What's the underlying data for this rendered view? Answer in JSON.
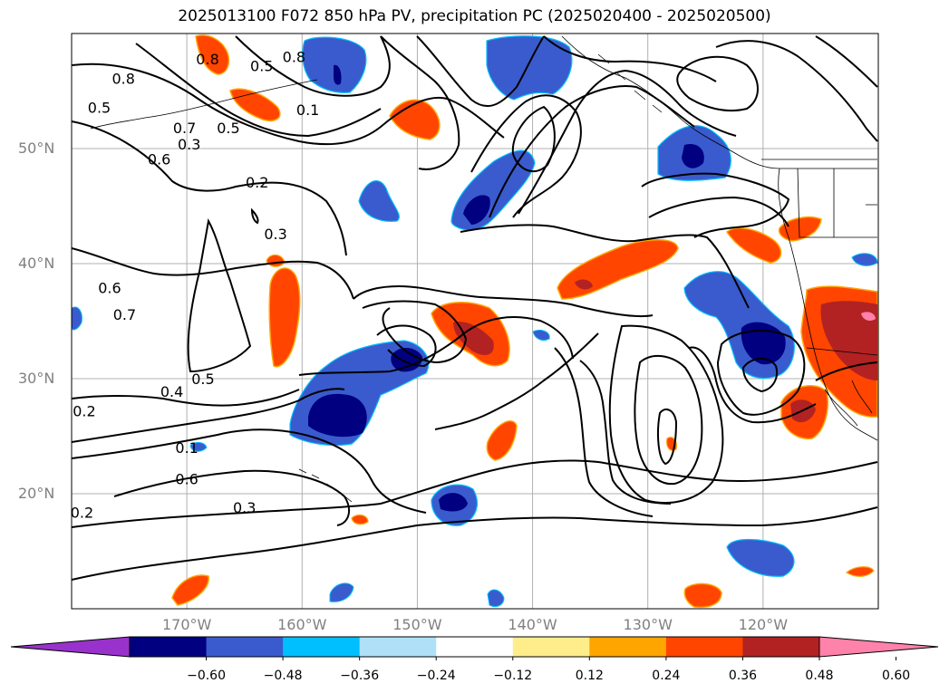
{
  "title": "2025013100 F072 850 hPa PV, precipitation PC (2025020400 - 2025020500)",
  "map": {
    "lon_min": -180,
    "lon_max": -110,
    "lat_min": 10,
    "lat_max": 60,
    "lat_ticks": [
      {
        "value": 20,
        "label": "20°N"
      },
      {
        "value": 30,
        "label": "30°N"
      },
      {
        "value": 40,
        "label": "40°N"
      },
      {
        "value": 50,
        "label": "50°N"
      }
    ],
    "lon_ticks": [
      {
        "value": -170,
        "label": "170°W"
      },
      {
        "value": -160,
        "label": "160°W"
      },
      {
        "value": -150,
        "label": "150°W"
      },
      {
        "value": -140,
        "label": "140°W"
      },
      {
        "value": -130,
        "label": "130°W"
      },
      {
        "value": -120,
        "label": "120°W"
      }
    ],
    "grid": true
  },
  "pv_contour_labels": [
    {
      "text": "0.8",
      "lon": -175.5,
      "lat": 56.1
    },
    {
      "text": "0.5",
      "lon": -177.6,
      "lat": 53.6
    },
    {
      "text": "0.7",
      "lon": -170.2,
      "lat": 51.8
    },
    {
      "text": "0.5",
      "lon": -166.4,
      "lat": 51.8
    },
    {
      "text": "0.6",
      "lon": -172.4,
      "lat": 49.1
    },
    {
      "text": "0.3",
      "lon": -169.8,
      "lat": 50.4
    },
    {
      "text": "0.8",
      "lon": -168.2,
      "lat": 57.8
    },
    {
      "text": "0.5",
      "lon": -163.5,
      "lat": 57.2
    },
    {
      "text": "0.8",
      "lon": -160.7,
      "lat": 58.0
    },
    {
      "text": "0.1",
      "lon": -159.5,
      "lat": 53.4
    },
    {
      "text": "0.2",
      "lon": -163.9,
      "lat": 47.1
    },
    {
      "text": "0.3",
      "lon": -162.3,
      "lat": 42.6
    },
    {
      "text": "0.6",
      "lon": -176.7,
      "lat": 37.9
    },
    {
      "text": "0.7",
      "lon": -175.4,
      "lat": 35.6
    },
    {
      "text": "0.4",
      "lon": -171.3,
      "lat": 28.9
    },
    {
      "text": "0.5",
      "lon": -168.6,
      "lat": 30.0
    },
    {
      "text": "0.1",
      "lon": -170.0,
      "lat": 24.0
    },
    {
      "text": "0.6",
      "lon": -170.0,
      "lat": 21.3
    },
    {
      "text": "0.2",
      "lon": -178.9,
      "lat": 27.2
    },
    {
      "text": "0.2",
      "lon": -179.1,
      "lat": 18.4
    },
    {
      "text": "0.3",
      "lon": -165.0,
      "lat": 18.8
    }
  ],
  "precip_colors": {
    "n060": "#000080",
    "n048": "#3a5bcd",
    "n036": "#00bfff",
    "n024": "#b0e0f8",
    "p024": "#ffa500",
    "p036": "#ff4500",
    "p048": "#b22222",
    "p060": "#ff82ab",
    "p012": "#ffec8b"
  },
  "colorbar": {
    "colors": [
      "#9932cc",
      "#000080",
      "#3a5bcd",
      "#00bfff",
      "#b0e0f8",
      "#ffffff",
      "#ffec8b",
      "#ffa500",
      "#ff4500",
      "#b22222",
      "#ff82ab"
    ],
    "tick_labels": [
      "−0.60",
      "−0.48",
      "−0.36",
      "−0.24",
      "−0.12",
      "0.12",
      "0.24",
      "0.36",
      "0.48",
      "0.60"
    ]
  }
}
